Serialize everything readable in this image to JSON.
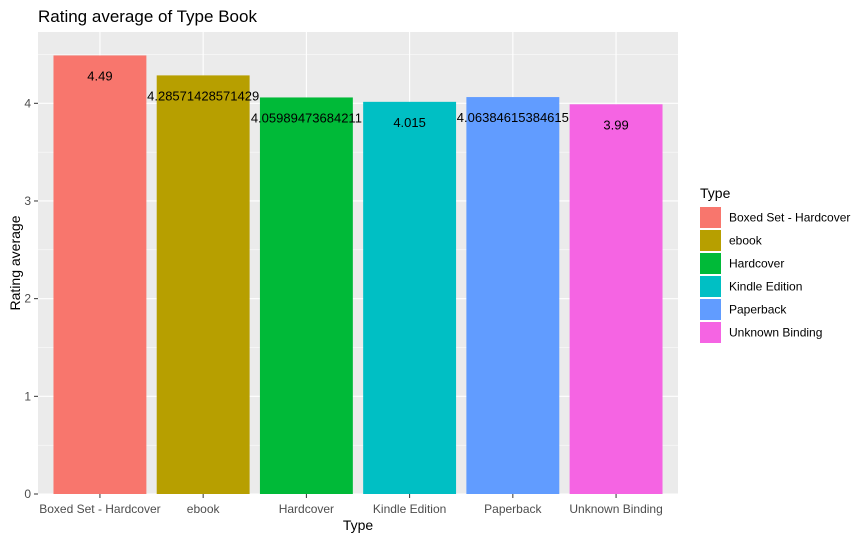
{
  "chart_data": {
    "type": "bar",
    "title": "Rating average of Type Book",
    "xlabel": "Type",
    "ylabel": "Rating average",
    "ylim": [
      0,
      4.73
    ],
    "y_ticks": [
      0,
      1,
      2,
      3,
      4
    ],
    "grid": true,
    "legend_position": "right",
    "legend_title": "Type",
    "categories": [
      "Boxed Set - Hardcover",
      "ebook",
      "Hardcover",
      "Kindle Edition",
      "Paperback",
      "Unknown Binding"
    ],
    "values": [
      4.49,
      4.28571428571429,
      4.05989473684211,
      4.015,
      4.06384615384615,
      3.99
    ],
    "value_labels": [
      "4.49",
      "4.28571428571429",
      "4.05989473684211",
      "4.015",
      "4.06384615384615",
      "3.99"
    ],
    "colors": [
      "#F8766D",
      "#B79F00",
      "#00BA38",
      "#00BFC4",
      "#619CFF",
      "#F564E3"
    ],
    "panel_background": "#EBEBEB",
    "grid_color": "#FFFFFF"
  }
}
